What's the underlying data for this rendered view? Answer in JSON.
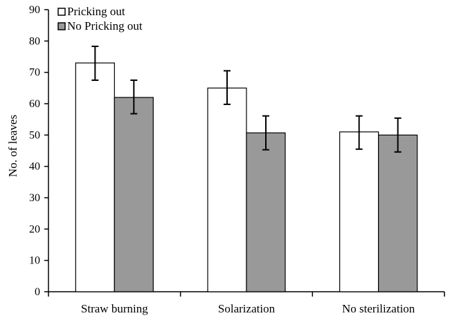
{
  "chart_data": {
    "type": "bar",
    "title": "",
    "xlabel": "",
    "ylabel": "No. of leaves",
    "ylim": [
      0,
      90
    ],
    "yticks": [
      0,
      10,
      20,
      30,
      40,
      50,
      60,
      70,
      80,
      90
    ],
    "categories": [
      "Straw burning",
      "Solarization",
      "No sterilization"
    ],
    "series": [
      {
        "name": "Pricking out",
        "color": "#ffffff",
        "values": [
          73,
          65,
          51
        ],
        "error_low": [
          67.5,
          59.8,
          45.5
        ],
        "error_high": [
          78.3,
          70.5,
          56.1
        ]
      },
      {
        "name": "No Pricking out",
        "color": "#999999",
        "values": [
          62,
          50.7,
          50
        ],
        "error_low": [
          56.8,
          45.3,
          44.6
        ],
        "error_high": [
          67.5,
          56.1,
          55.4
        ]
      }
    ],
    "legend_position": "top-left",
    "grid": false
  }
}
